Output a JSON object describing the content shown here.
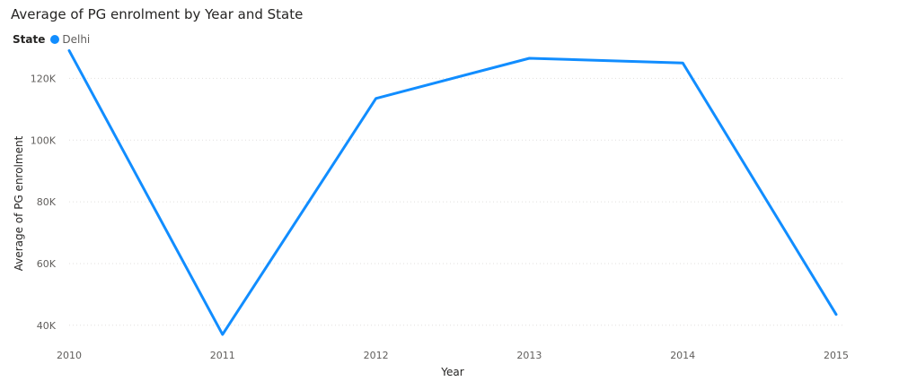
{
  "chart_data": {
    "type": "line",
    "title": "Average of PG enrolment by Year and State",
    "legend": {
      "title": "State",
      "placement": "top-left",
      "entries": [
        {
          "name": "Delhi",
          "color": "#118DFF"
        }
      ]
    },
    "xlabel": "Year",
    "ylabel": "Average of PG enrolment",
    "x": [
      "2010",
      "2011",
      "2012",
      "2013",
      "2014",
      "2015"
    ],
    "series": [
      {
        "name": "Delhi",
        "color": "#118DFF",
        "values": [
          129000,
          37000,
          113500,
          126500,
          125000,
          43500
        ]
      }
    ],
    "yticks": [
      {
        "value": 40000,
        "label": "40K"
      },
      {
        "value": 60000,
        "label": "60K"
      },
      {
        "value": 80000,
        "label": "80K"
      },
      {
        "value": 100000,
        "label": "100K"
      },
      {
        "value": 120000,
        "label": "120K"
      }
    ],
    "ylim": [
      35000,
      130000
    ],
    "grid": true,
    "gridColor": "#e1dfdd"
  }
}
